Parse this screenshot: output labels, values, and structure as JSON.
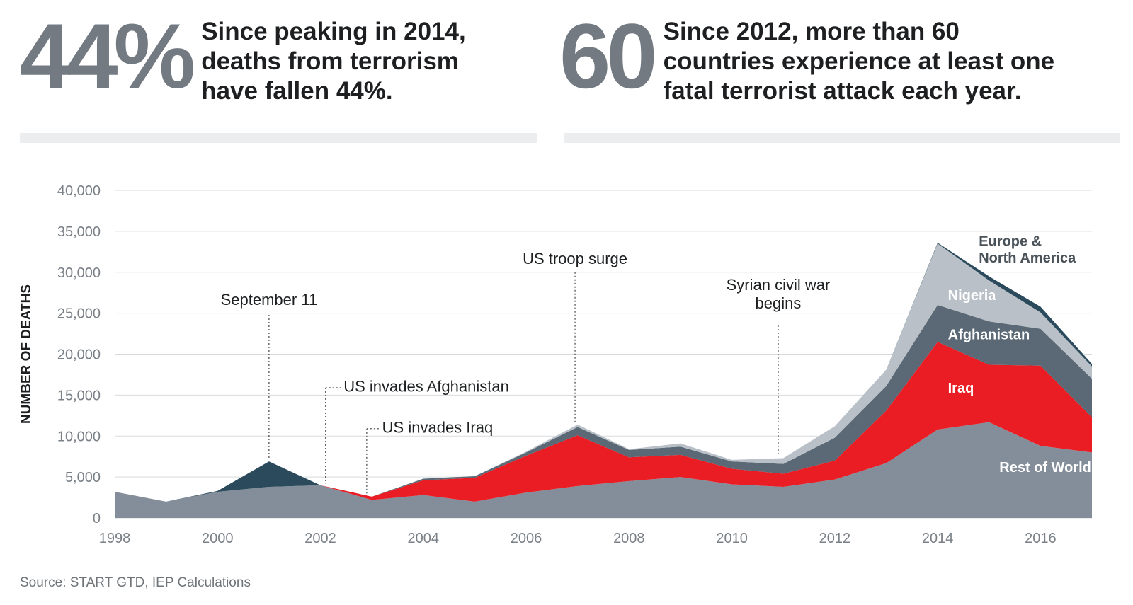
{
  "stats": [
    {
      "number": "44%",
      "text": "Since peaking in 2014,\ndeaths from terrorism\nhave fallen 44%."
    },
    {
      "number": "60",
      "text": "Since 2012, more than 60\ncountries experience at least one\nfatal terrorist attack each year."
    }
  ],
  "source": "Source: START GTD, IEP Calculations",
  "colors": {
    "rest_of_world": "#848e9a",
    "iraq": "#ea1c24",
    "afghanistan": "#5a6975",
    "nigeria": "#b9c0c7",
    "europe_north_america": "#2b4b5c",
    "grid": "#d8dbde",
    "axis_text": "#7a8087",
    "annotation": "#1d1f21"
  },
  "chart_data": {
    "type": "area",
    "stacked": true,
    "ylabel": "NUMBER OF DEATHS",
    "xlabel": "",
    "ylim": [
      0,
      40000
    ],
    "xlim": [
      1998,
      2017
    ],
    "y_ticks": [
      "0",
      "5,000",
      "10,000",
      "15,000",
      "20,000",
      "25,000",
      "30,000",
      "35,000",
      "40,000"
    ],
    "x_ticks": [
      "1998",
      "2000",
      "2002",
      "2004",
      "2006",
      "2008",
      "2010",
      "2012",
      "2014",
      "2016"
    ],
    "grid": true,
    "x": [
      1998,
      1999,
      2000,
      2001,
      2002,
      2003,
      2004,
      2005,
      2006,
      2007,
      2008,
      2009,
      2010,
      2011,
      2012,
      2013,
      2014,
      2015,
      2016,
      2017
    ],
    "series": [
      {
        "name": "Rest of World",
        "values": [
          3200,
          2000,
          3200,
          3800,
          4000,
          2200,
          2800,
          2000,
          3100,
          3900,
          4500,
          5000,
          4100,
          3800,
          4700,
          6700,
          10800,
          11700,
          8800,
          8000
        ]
      },
      {
        "name": "Iraq",
        "values": [
          0,
          0,
          0,
          0,
          0,
          400,
          1800,
          2900,
          4500,
          6200,
          2900,
          2700,
          1900,
          1600,
          2300,
          6400,
          10700,
          7000,
          9800,
          4300
        ]
      },
      {
        "name": "Afghanistan",
        "values": [
          0,
          0,
          0,
          0,
          0,
          0,
          200,
          200,
          400,
          1000,
          900,
          1000,
          900,
          1200,
          2800,
          3000,
          4500,
          5300,
          4500,
          4700
        ]
      },
      {
        "name": "Nigeria",
        "values": [
          0,
          0,
          0,
          0,
          0,
          0,
          0,
          0,
          100,
          300,
          100,
          400,
          200,
          700,
          1400,
          2000,
          7500,
          5000,
          2000,
          1500
        ]
      },
      {
        "name": "Europe & North America",
        "values": [
          0,
          0,
          100,
          3100,
          0,
          0,
          0,
          0,
          0,
          0,
          0,
          0,
          0,
          0,
          0,
          0,
          100,
          500,
          700,
          300
        ]
      }
    ],
    "series_labels": [
      {
        "text": "Rest of World",
        "x": 2015.2,
        "y": 5600,
        "color": "#ffffff"
      },
      {
        "text": "Iraq",
        "x": 2014.2,
        "y": 15300,
        "color": "#ffffff"
      },
      {
        "text": "Afghanistan",
        "x": 2014.2,
        "y": 21800,
        "color": "#ffffff"
      },
      {
        "text": "Nigeria",
        "x": 2014.2,
        "y": 26600,
        "color": "#ffffff"
      },
      {
        "text": "Europe &",
        "x": 2014.8,
        "y": 33200,
        "color": "#4a5259"
      },
      {
        "text": "North America",
        "x": 2014.8,
        "y": 31200,
        "color": "#4a5259"
      }
    ],
    "annotations": [
      {
        "lines": [
          "September 11"
        ],
        "line_x": 2001,
        "line_y_top": 24800,
        "line_y_bottom": 7200,
        "text_align": "center",
        "text_x": 2001,
        "text_y": 26000
      },
      {
        "lines": [
          "US invades Afghanistan"
        ],
        "line_x": 2002.1,
        "line_y_top": 15900,
        "line_y_bottom": 4200,
        "text_align": "start",
        "text_x": 2002.45,
        "text_y": 15400
      },
      {
        "lines": [
          "US invades Iraq"
        ],
        "line_x": 2002.9,
        "line_y_top": 10900,
        "line_y_bottom": 3000,
        "text_align": "start",
        "text_x": 2003.2,
        "text_y": 10400
      },
      {
        "lines": [
          "US troop surge"
        ],
        "line_x": 2006.95,
        "line_y_top": 30000,
        "line_y_bottom": 11600,
        "text_align": "center",
        "text_x": 2006.95,
        "text_y": 31000
      },
      {
        "lines": [
          "Syrian civil war",
          "begins"
        ],
        "line_x": 2010.9,
        "line_y_top": 23500,
        "line_y_bottom": 7600,
        "text_align": "center",
        "text_x": 2010.9,
        "text_y": 27800
      }
    ]
  }
}
